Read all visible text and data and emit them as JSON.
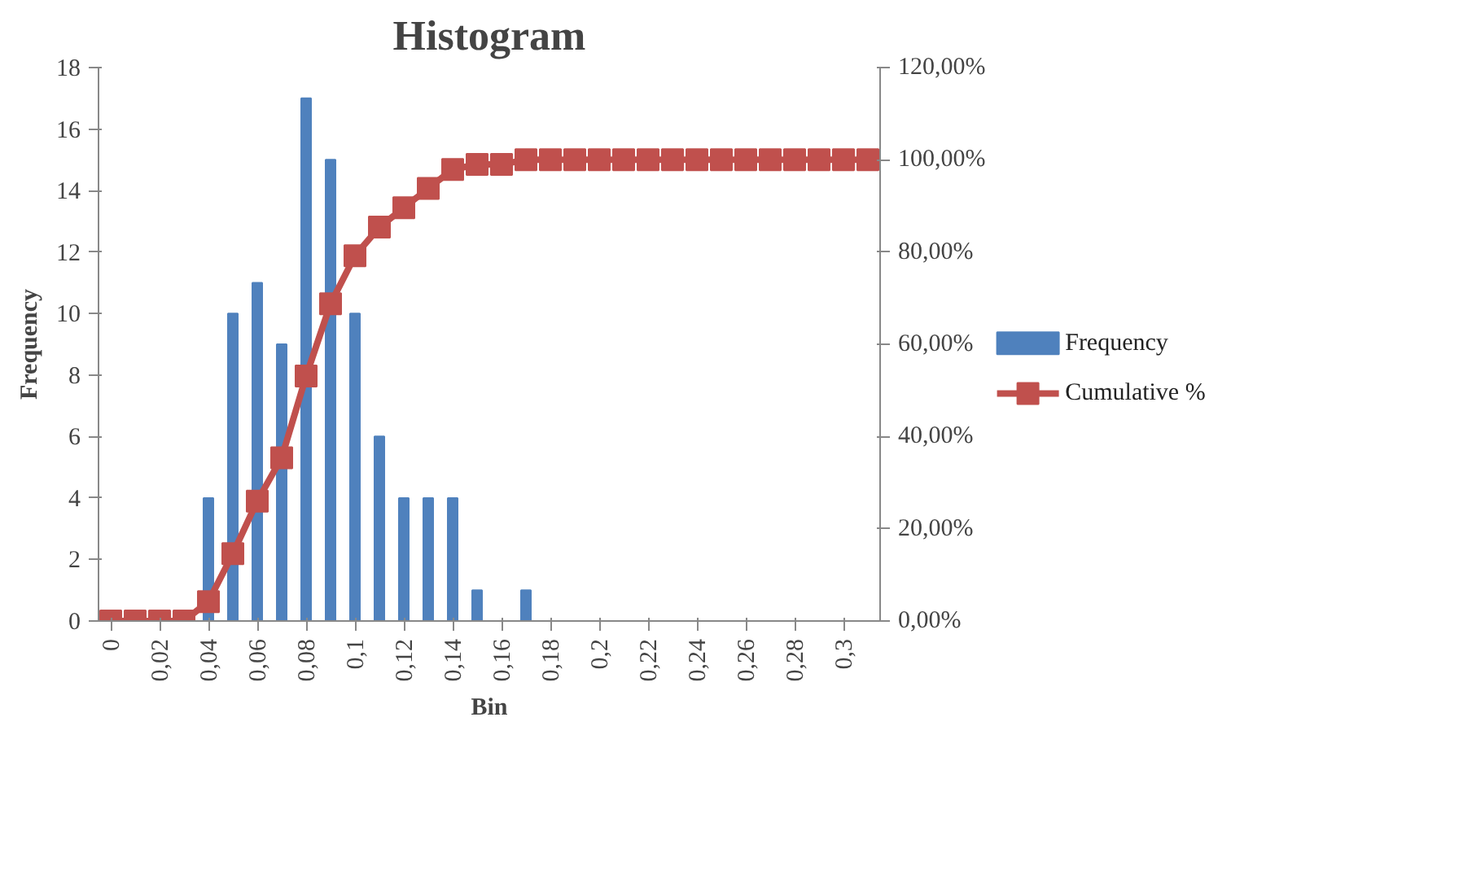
{
  "chart_data": {
    "type": "bar",
    "title": "Histogram",
    "xlabel": "Bin",
    "ylabel": "Frequency",
    "categories": [
      "0",
      null,
      "0,02",
      null,
      "0,04",
      null,
      "0,06",
      null,
      "0,08",
      null,
      "0,1",
      null,
      "0,12",
      null,
      "0,14",
      null,
      "0,16",
      null,
      "0,18",
      null,
      "0,2",
      null,
      "0,22",
      null,
      "0,24",
      null,
      "0,26",
      null,
      "0,28",
      null,
      "0,3",
      null
    ],
    "series": [
      {
        "name": "Frequency",
        "color": "#4f81bd",
        "values": [
          0,
          0,
          0,
          0,
          4,
          10,
          11,
          9,
          17,
          15,
          10,
          6,
          4,
          4,
          4,
          1,
          0,
          1,
          0,
          0,
          0,
          0,
          0,
          0,
          0,
          0,
          0,
          0,
          0,
          0,
          0,
          0
        ]
      },
      {
        "name": "Cumulative %",
        "type": "line",
        "axis": "y2",
        "color": "#c0504d",
        "marker": "square",
        "values": [
          0,
          0,
          0,
          0,
          4.2,
          14.6,
          26,
          35.4,
          53.1,
          68.8,
          79.2,
          85.4,
          89.6,
          93.8,
          97.9,
          99,
          99,
          100,
          100,
          100,
          100,
          100,
          100,
          100,
          100,
          100,
          100,
          100,
          100,
          100,
          100,
          100
        ]
      }
    ],
    "ylim": [
      0,
      18
    ],
    "yticks": [
      0,
      2,
      4,
      6,
      8,
      10,
      12,
      14,
      16,
      18
    ],
    "y2lim": [
      0,
      120
    ],
    "y2ticks": [
      {
        "value": 0,
        "label": "0,00%"
      },
      {
        "value": 20,
        "label": "20,00%"
      },
      {
        "value": 40,
        "label": "40,00%"
      },
      {
        "value": 60,
        "label": "60,00%"
      },
      {
        "value": 80,
        "label": "80,00%"
      },
      {
        "value": 100,
        "label": "100,00%"
      },
      {
        "value": 120,
        "label": "120,00%"
      }
    ],
    "grid": false,
    "legend": "right"
  }
}
